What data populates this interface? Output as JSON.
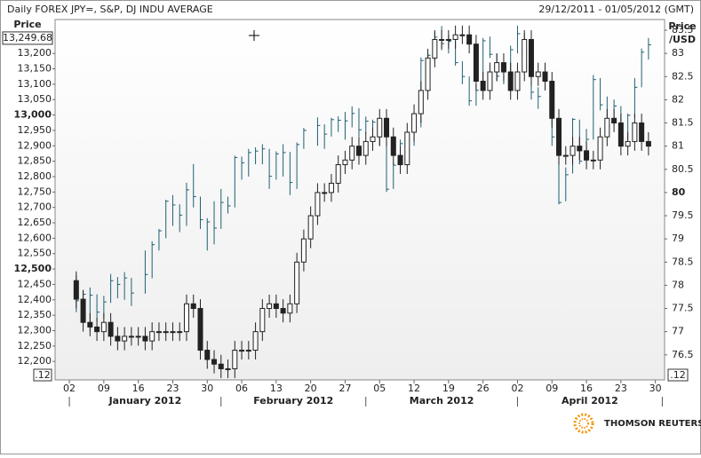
{
  "chart_data": {
    "type": "ohlc_overlay",
    "title": "Daily FOREX JPY=, S&P, DJ INDU AVERAGE",
    "date_range": "29/12/2011 - 01/05/2012 (GMT)",
    "y_label": "Price",
    "y2_label": [
      "Price",
      "/USD"
    ],
    "current_value": {
      "value": 13249.68,
      "label": "13,249.68"
    },
    "cursor_labels": [
      ".12",
      ".12"
    ],
    "logo": "THOMSON REUTERS",
    "grid": false,
    "ylim": [
      12140,
      13310
    ],
    "yticks": [
      {
        "value": 12200,
        "label": "12,200"
      },
      {
        "value": 12250,
        "label": "12,250"
      },
      {
        "value": 12300,
        "label": "12,300"
      },
      {
        "value": 12350,
        "label": "12,350"
      },
      {
        "value": 12400,
        "label": "12,400"
      },
      {
        "value": 12450,
        "label": "12,450"
      },
      {
        "value": 12500,
        "label": "12,500"
      },
      {
        "value": 12550,
        "label": "12,550"
      },
      {
        "value": 12600,
        "label": "12,600"
      },
      {
        "value": 12650,
        "label": "12,650"
      },
      {
        "value": 12700,
        "label": "12,700"
      },
      {
        "value": 12750,
        "label": "12,750"
      },
      {
        "value": 12800,
        "label": "12,800"
      },
      {
        "value": 12850,
        "label": "12,850"
      },
      {
        "value": 12900,
        "label": "12,900"
      },
      {
        "value": 12950,
        "label": "12,950"
      },
      {
        "value": 13000,
        "label": "13,000"
      },
      {
        "value": 13050,
        "label": "13,050"
      },
      {
        "value": 13100,
        "label": "13,100"
      },
      {
        "value": 13150,
        "label": "13,150"
      },
      {
        "value": 13200,
        "label": "13,200"
      }
    ],
    "y2lim": [
      75.96,
      83.73
    ],
    "y2ticks": [
      76.5,
      77,
      77.5,
      78,
      78.5,
      79,
      79.5,
      80,
      80.5,
      81,
      81.5,
      82,
      82.5,
      83,
      83.5
    ],
    "xticks": [
      {
        "value": "2012-01-02",
        "label": "02"
      },
      {
        "value": "2012-01-09",
        "label": "09"
      },
      {
        "value": "2012-01-16",
        "label": "16"
      },
      {
        "value": "2012-01-23",
        "label": "23"
      },
      {
        "value": "2012-01-30",
        "label": "30"
      },
      {
        "value": "2012-02-06",
        "label": "06"
      },
      {
        "value": "2012-02-13",
        "label": "13"
      },
      {
        "value": "2012-02-20",
        "label": "20"
      },
      {
        "value": "2012-02-27",
        "label": "27"
      },
      {
        "value": "2012-03-05",
        "label": "05"
      },
      {
        "value": "2012-03-12",
        "label": "12"
      },
      {
        "value": "2012-03-19",
        "label": "19"
      },
      {
        "value": "2012-03-26",
        "label": "26"
      },
      {
        "value": "2012-04-02",
        "label": "02"
      },
      {
        "value": "2012-04-09",
        "label": "09"
      },
      {
        "value": "2012-04-16",
        "label": "16"
      },
      {
        "value": "2012-04-23",
        "label": "23"
      },
      {
        "value": "2012-04-30",
        "label": "30"
      }
    ],
    "months": [
      {
        "value": "2012-01-01",
        "label": "January 2012"
      },
      {
        "value": "2012-02-01",
        "label": "February 2012"
      },
      {
        "value": "2012-03-01",
        "label": "March 2012"
      },
      {
        "value": "2012-04-01",
        "label": "April 2012"
      },
      {
        "value": "2012-05-01",
        "label": null
      }
    ],
    "x": [
      "2012-01-03",
      "2012-01-04",
      "2012-01-05",
      "2012-01-06",
      "2012-01-09",
      "2012-01-10",
      "2012-01-11",
      "2012-01-12",
      "2012-01-13",
      "2012-01-16",
      "2012-01-17",
      "2012-01-18",
      "2012-01-19",
      "2012-01-20",
      "2012-01-23",
      "2012-01-24",
      "2012-01-25",
      "2012-01-26",
      "2012-01-27",
      "2012-01-30",
      "2012-01-31",
      "2012-02-01",
      "2012-02-02",
      "2012-02-03",
      "2012-02-06",
      "2012-02-07",
      "2012-02-08",
      "2012-02-09",
      "2012-02-10",
      "2012-02-13",
      "2012-02-14",
      "2012-02-15",
      "2012-02-16",
      "2012-02-17",
      "2012-02-20",
      "2012-02-21",
      "2012-02-22",
      "2012-02-23",
      "2012-02-24",
      "2012-02-27",
      "2012-02-28",
      "2012-02-29",
      "2012-03-01",
      "2012-03-02",
      "2012-03-05",
      "2012-03-06",
      "2012-03-07",
      "2012-03-08",
      "2012-03-09",
      "2012-03-12",
      "2012-03-13",
      "2012-03-14",
      "2012-03-15",
      "2012-03-16",
      "2012-03-19",
      "2012-03-20",
      "2012-03-21",
      "2012-03-22",
      "2012-03-23",
      "2012-03-26",
      "2012-03-27",
      "2012-03-28",
      "2012-03-29",
      "2012-03-30",
      "2012-04-02",
      "2012-04-03",
      "2012-04-04",
      "2012-04-05",
      "2012-04-06",
      "2012-04-09",
      "2012-04-10",
      "2012-04-11",
      "2012-04-12",
      "2012-04-13",
      "2012-04-16",
      "2012-04-17",
      "2012-04-18",
      "2012-04-19",
      "2012-04-20",
      "2012-04-23",
      "2012-04-24",
      "2012-04-25",
      "2012-04-26",
      "2012-04-27"
    ],
    "series": [
      {
        "type": "hlc",
        "axis": "y",
        "color": "#1f5f73",
        "high": [
          12479,
          12430,
          12440,
          12418,
          12413,
          12484,
          12474,
          12490,
          12471,
          null,
          12560,
          12590,
          12630,
          12725,
          12740,
          12710,
          12780,
          12841,
          12735,
          12665,
          12720,
          12760,
          12735,
          12868,
          12865,
          12890,
          12895,
          12905,
          12890,
          12882,
          12905,
          12880,
          12911,
          12958,
          null,
          12992,
          12970,
          12991,
          12996,
          13010,
          13028,
          13022,
          12995,
          12985,
          12980,
          12960,
          12845,
          12920,
          12940,
          12965,
          13187,
          13200,
          13270,
          13289,
          13260,
          13240,
          13175,
          13125,
          13100,
          13250,
          13255,
          13200,
          13160,
          13225,
          13290,
          13265,
          13210,
          13090,
          null,
          13060,
          12930,
          12830,
          12990,
          12985,
          12955,
          13130,
          13120,
          13060,
          13050,
          13029,
          13005,
          13120,
          13216,
          13250
        ],
        "low": [
          12360,
          12360,
          12300,
          12330,
          12340,
          12390,
          12405,
          12400,
          12380,
          null,
          12420,
          12470,
          12560,
          12600,
          12640,
          12620,
          12640,
          12700,
          12630,
          12560,
          12580,
          12630,
          12680,
          12700,
          12790,
          12800,
          12840,
          12840,
          12760,
          12790,
          12800,
          12740,
          12760,
          12890,
          null,
          12900,
          12890,
          12930,
          12945,
          12920,
          12960,
          12930,
          12940,
          12920,
          12900,
          12750,
          12760,
          12830,
          12890,
          12900,
          12960,
          13140,
          13175,
          13210,
          13200,
          13160,
          13100,
          13030,
          13030,
          13080,
          13185,
          13110,
          13100,
          13140,
          13200,
          13150,
          13050,
          13020,
          null,
          12900,
          12710,
          12720,
          12810,
          12840,
          12850,
          12920,
          13015,
          12930,
          12965,
          12920,
          12920,
          12990,
          13090,
          13180
        ],
        "close": [
          12397,
          12418,
          12415,
          12360,
          12393,
          12462,
          12450,
          12471,
          12422,
          null,
          12482,
          12579,
          12624,
          12720,
          12708,
          12675,
          12757,
          12735,
          12660,
          12653,
          12633,
          12716,
          12705,
          12862,
          12845,
          12878,
          12883,
          12890,
          12801,
          12874,
          12878,
          12781,
          12904,
          12950,
          null,
          12966,
          12938,
          12985,
          12983,
          12981,
          13005,
          12952,
          12980,
          12977,
          12962,
          12759,
          12837,
          12907,
          12922,
          12959,
          13177,
          13194,
          13253,
          13232,
          13239,
          13170,
          13125,
          13046,
          13080,
          13241,
          13197,
          13126,
          13145,
          13212,
          13264,
          13199,
          13074,
          13060,
          null,
          12929,
          12716,
          12806,
          12986,
          12850,
          12921,
          13115,
          13033,
          12965,
          13029,
          12928,
          12999,
          13090,
          13204,
          13228
        ]
      },
      {
        "type": "candlestick",
        "axis": "y2",
        "color": "#222222",
        "up_color": "#ffffff",
        "open": [
          78.1,
          77.7,
          77.2,
          77.1,
          77.0,
          77.2,
          76.9,
          76.8,
          76.9,
          76.9,
          76.9,
          76.8,
          77.0,
          77.0,
          77.0,
          77.0,
          77.0,
          77.6,
          77.5,
          76.6,
          76.4,
          76.3,
          76.2,
          76.2,
          76.6,
          76.6,
          76.6,
          77.0,
          77.5,
          77.6,
          77.5,
          77.4,
          77.6,
          78.5,
          79.0,
          79.5,
          80.0,
          80.0,
          80.2,
          80.6,
          80.7,
          81.0,
          80.8,
          81.1,
          81.2,
          81.6,
          81.2,
          80.8,
          80.6,
          81.3,
          81.7,
          82.2,
          82.9,
          83.3,
          83.3,
          83.3,
          83.4,
          83.4,
          83.2,
          82.4,
          82.2,
          82.6,
          82.8,
          82.6,
          82.2,
          82.6,
          83.3,
          82.5,
          82.6,
          82.4,
          81.6,
          80.8,
          80.8,
          81.0,
          80.9,
          80.7,
          80.7,
          81.2,
          81.6,
          81.5,
          81.0,
          81.1,
          81.5,
          81.1
        ],
        "high": [
          78.3,
          77.9,
          77.4,
          77.3,
          77.4,
          77.4,
          77.1,
          77.1,
          77.1,
          77.1,
          77.1,
          77.2,
          77.2,
          77.2,
          77.2,
          77.2,
          77.8,
          77.8,
          77.7,
          76.8,
          76.6,
          76.5,
          76.4,
          76.8,
          76.8,
          76.8,
          77.2,
          77.7,
          77.8,
          77.8,
          77.7,
          77.8,
          78.7,
          79.2,
          79.7,
          80.2,
          80.2,
          80.4,
          80.8,
          80.9,
          81.2,
          81.2,
          81.3,
          81.4,
          81.8,
          81.8,
          81.4,
          81.0,
          81.5,
          81.9,
          82.4,
          83.1,
          83.5,
          83.5,
          83.5,
          83.6,
          83.6,
          83.6,
          83.4,
          82.6,
          82.8,
          83.0,
          83.0,
          82.8,
          82.8,
          83.5,
          83.5,
          82.8,
          82.8,
          82.6,
          81.8,
          81.0,
          81.2,
          81.2,
          81.1,
          80.9,
          81.4,
          81.8,
          81.8,
          81.7,
          81.3,
          81.7,
          81.7,
          81.3
        ],
        "low": [
          77.5,
          77.0,
          76.9,
          76.8,
          76.8,
          76.7,
          76.6,
          76.6,
          76.7,
          76.7,
          76.6,
          76.6,
          76.8,
          76.8,
          76.8,
          76.8,
          76.8,
          77.3,
          76.4,
          76.2,
          76.1,
          76.0,
          76.0,
          76.0,
          76.4,
          76.4,
          76.4,
          76.8,
          77.3,
          77.3,
          77.2,
          77.2,
          77.4,
          78.3,
          78.8,
          79.3,
          79.8,
          79.8,
          80.0,
          80.4,
          80.5,
          80.6,
          80.6,
          80.9,
          81.0,
          81.0,
          80.6,
          80.4,
          80.4,
          81.1,
          81.5,
          82.0,
          82.7,
          83.1,
          83.1,
          83.1,
          83.2,
          83.0,
          82.2,
          82.0,
          82.0,
          82.4,
          82.4,
          82.0,
          82.0,
          82.4,
          82.3,
          82.3,
          82.2,
          81.4,
          80.6,
          80.6,
          80.6,
          80.7,
          80.5,
          80.5,
          80.5,
          81.0,
          81.3,
          80.8,
          80.8,
          80.9,
          80.9,
          80.8
        ],
        "close": [
          77.7,
          77.2,
          77.1,
          77.0,
          77.2,
          76.9,
          76.8,
          76.9,
          76.9,
          76.9,
          76.8,
          77.0,
          77.0,
          77.0,
          77.0,
          77.0,
          77.6,
          77.5,
          76.6,
          76.4,
          76.3,
          76.2,
          76.2,
          76.6,
          76.6,
          76.6,
          77.0,
          77.5,
          77.6,
          77.5,
          77.4,
          77.6,
          78.5,
          79.0,
          79.5,
          80.0,
          80.0,
          80.2,
          80.6,
          80.7,
          81.0,
          80.8,
          81.1,
          81.2,
          81.6,
          81.2,
          80.8,
          80.6,
          81.3,
          81.7,
          82.2,
          82.9,
          83.3,
          83.3,
          83.3,
          83.4,
          83.4,
          83.2,
          82.4,
          82.2,
          82.6,
          82.8,
          82.6,
          82.2,
          82.6,
          83.3,
          82.5,
          82.6,
          82.4,
          81.6,
          80.8,
          80.8,
          81.0,
          80.9,
          80.7,
          80.7,
          81.2,
          81.6,
          81.5,
          81.0,
          81.1,
          81.5,
          81.1,
          81.0
        ]
      }
    ]
  }
}
